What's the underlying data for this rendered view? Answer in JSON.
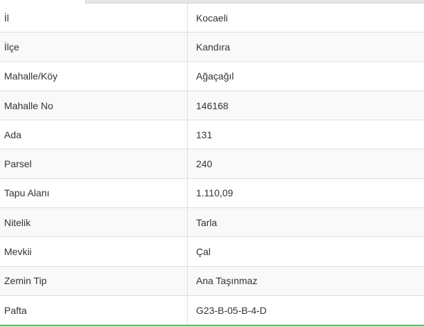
{
  "rows": [
    {
      "label": "İl",
      "value": "Kocaeli"
    },
    {
      "label": "İlçe",
      "value": "Kandıra"
    },
    {
      "label": "Mahalle/Köy",
      "value": "Ağaçağıl"
    },
    {
      "label": "Mahalle No",
      "value": "146168"
    },
    {
      "label": "Ada",
      "value": "131"
    },
    {
      "label": "Parsel",
      "value": "240"
    },
    {
      "label": "Tapu Alanı",
      "value": "1.110,09"
    },
    {
      "label": "Nitelik",
      "value": "Tarla"
    },
    {
      "label": "Mevkii",
      "value": "Çal"
    },
    {
      "label": "Zemin Tip",
      "value": "Ana Taşınmaz"
    },
    {
      "label": "Pafta",
      "value": "G23-B-05-B-4-D"
    }
  ],
  "colors": {
    "accent_line": "#5cb85c",
    "stripe": "#f9f9f9",
    "border": "#dddddd"
  }
}
